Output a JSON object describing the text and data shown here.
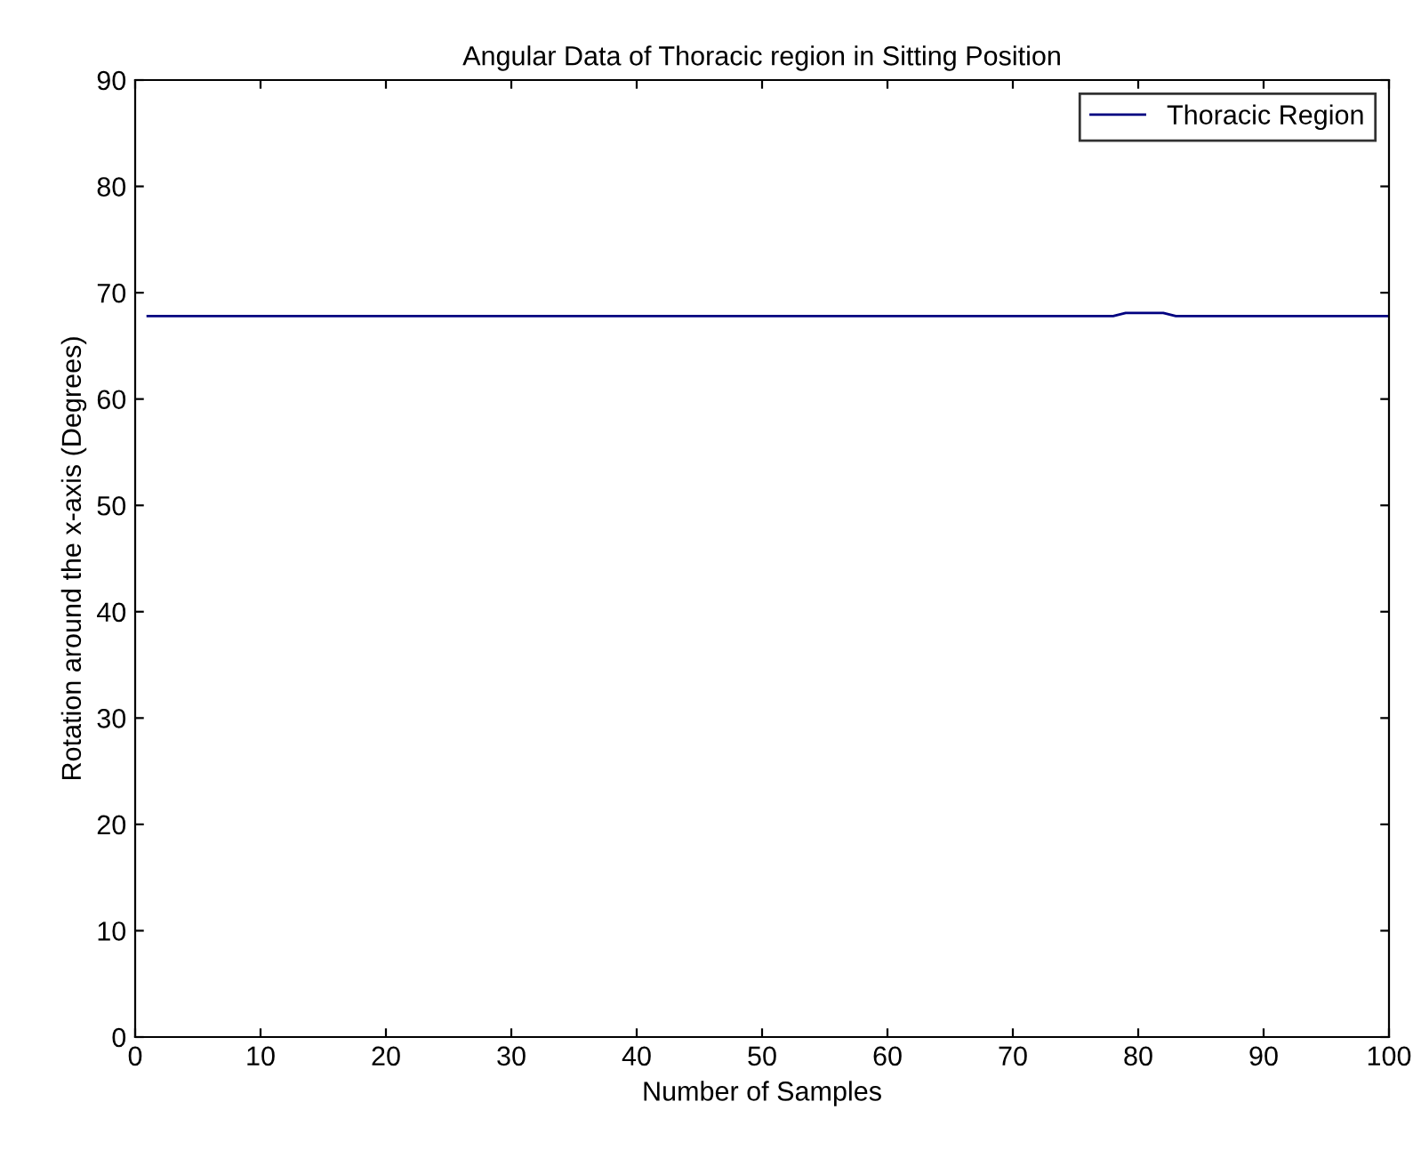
{
  "chart_data": {
    "type": "line",
    "title": "Angular Data of Thoracic region in Sitting Position",
    "xlabel": "Number of Samples",
    "ylabel": "Rotation around the x-axis (Degrees)",
    "series": [
      {
        "name": "Thoracic Region",
        "color": "#000080",
        "x": [
          1,
          78,
          79,
          82,
          83,
          100
        ],
        "values": [
          67.8,
          67.8,
          68.1,
          68.1,
          67.8,
          67.8
        ]
      }
    ],
    "xlim": [
      0,
      100
    ],
    "ylim": [
      0,
      90
    ],
    "xticks": [
      0,
      10,
      20,
      30,
      40,
      50,
      60,
      70,
      80,
      90,
      100
    ],
    "yticks": [
      0,
      10,
      20,
      30,
      40,
      50,
      60,
      70,
      80,
      90
    ],
    "grid": false,
    "legend": "top right"
  }
}
